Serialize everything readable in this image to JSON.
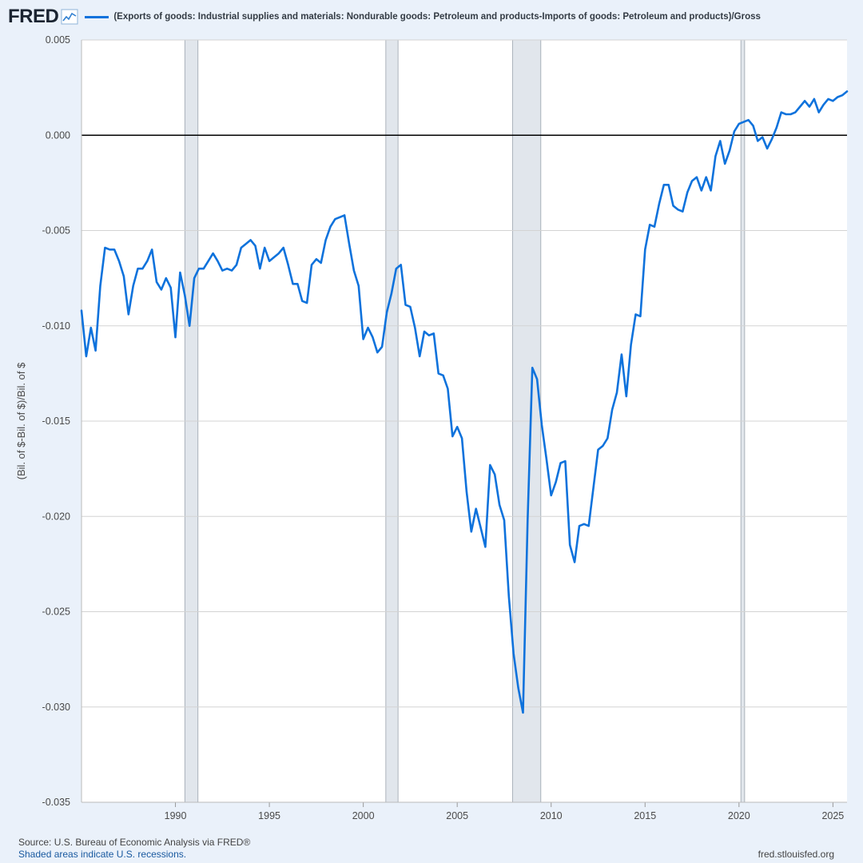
{
  "header": {
    "logo": "FRED",
    "logo_icon": "chart-line-icon",
    "legend_label": "(Exports of goods: Industrial supplies and materials: Nondurable goods: Petroleum and products-Imports of goods: Petroleum and products)/Gross"
  },
  "footer": {
    "source": "Source: U.S. Bureau of Economic Analysis via FRED®",
    "shaded": "Shaded areas indicate U.S. recessions.",
    "site": "fred.stlouisfed.org"
  },
  "colors": {
    "series": "#0e72dc",
    "recession": "#e1e6ec",
    "grid": "#d3d3d3",
    "background": "#eaf1fa",
    "plot": "#ffffff"
  },
  "chart_data": {
    "type": "line",
    "ylabel": "(Bil. of $-Bil. of $)/Bil. of $",
    "xlim": [
      1985.0,
      2025.75
    ],
    "ylim": [
      -0.035,
      0.005
    ],
    "yticks": [
      0.005,
      0.0,
      -0.005,
      -0.01,
      -0.015,
      -0.02,
      -0.025,
      -0.03,
      -0.035
    ],
    "ytick_labels": [
      "0.005",
      "0.000",
      "-0.005",
      "-0.010",
      "-0.015",
      "-0.020",
      "-0.025",
      "-0.030",
      "-0.035"
    ],
    "xticks": [
      1990,
      1995,
      2000,
      2005,
      2010,
      2015,
      2020,
      2025
    ],
    "xtick_labels": [
      "1990",
      "1995",
      "2000",
      "2005",
      "2010",
      "2015",
      "2020",
      "2025"
    ],
    "zero_line": 0.0,
    "grid": true,
    "recessions": [
      [
        1990.5,
        1991.2
      ],
      [
        2001.2,
        2001.85
      ],
      [
        2007.95,
        2009.45
      ],
      [
        2020.1,
        2020.3
      ]
    ],
    "series": [
      {
        "x": [
          1985.0,
          1985.25,
          1985.5,
          1985.75,
          1986.0,
          1986.25,
          1986.5,
          1986.75,
          1987.0,
          1987.25,
          1987.5,
          1987.75,
          1988.0,
          1988.25,
          1988.5,
          1988.75,
          1989.0,
          1989.25,
          1989.5,
          1989.75,
          1990.0,
          1990.25,
          1990.5,
          1990.75,
          1991.0,
          1991.25,
          1991.5,
          1991.75,
          1992.0,
          1992.25,
          1992.5,
          1992.75,
          1993.0,
          1993.25,
          1993.5,
          1993.75,
          1994.0,
          1994.25,
          1994.5,
          1994.75,
          1995.0,
          1995.25,
          1995.5,
          1995.75,
          1996.0,
          1996.25,
          1996.5,
          1996.75,
          1997.0,
          1997.25,
          1997.5,
          1997.75,
          1998.0,
          1998.25,
          1998.5,
          1998.75,
          1999.0,
          1999.25,
          1999.5,
          1999.75,
          2000.0,
          2000.25,
          2000.5,
          2000.75,
          2001.0,
          2001.25,
          2001.5,
          2001.75,
          2002.0,
          2002.25,
          2002.5,
          2002.75,
          2003.0,
          2003.25,
          2003.5,
          2003.75,
          2004.0,
          2004.25,
          2004.5,
          2004.75,
          2005.0,
          2005.25,
          2005.5,
          2005.75,
          2006.0,
          2006.25,
          2006.5,
          2006.75,
          2007.0,
          2007.25,
          2007.5,
          2007.75,
          2008.0,
          2008.25,
          2008.5,
          2008.75,
          2009.0,
          2009.25,
          2009.5,
          2009.75,
          2010.0,
          2010.25,
          2010.5,
          2010.75,
          2011.0,
          2011.25,
          2011.5,
          2011.75,
          2012.0,
          2012.25,
          2012.5,
          2012.75,
          2013.0,
          2013.25,
          2013.5,
          2013.75,
          2014.0,
          2014.25,
          2014.5,
          2014.75,
          2015.0,
          2015.25,
          2015.5,
          2015.75,
          2016.0,
          2016.25,
          2016.5,
          2016.75,
          2017.0,
          2017.25,
          2017.5,
          2017.75,
          2018.0,
          2018.25,
          2018.5,
          2018.75,
          2019.0,
          2019.25,
          2019.5,
          2019.75,
          2020.0,
          2020.25,
          2020.5,
          2020.75,
          2021.0,
          2021.25,
          2021.5,
          2021.75,
          2022.0,
          2022.25,
          2022.5,
          2022.75,
          2023.0,
          2023.25,
          2023.5,
          2023.75,
          2024.0,
          2024.25,
          2024.5,
          2024.75,
          2025.0,
          2025.25,
          2025.5,
          2025.75
        ],
        "y": [
          -0.0092,
          -0.0116,
          -0.0101,
          -0.0113,
          -0.0079,
          -0.0059,
          -0.006,
          -0.006,
          -0.0066,
          -0.0074,
          -0.0094,
          -0.0079,
          -0.007,
          -0.007,
          -0.0066,
          -0.006,
          -0.0077,
          -0.0081,
          -0.0075,
          -0.008,
          -0.0106,
          -0.0072,
          -0.0084,
          -0.01,
          -0.0075,
          -0.007,
          -0.007,
          -0.0066,
          -0.0062,
          -0.0066,
          -0.0071,
          -0.007,
          -0.0071,
          -0.0068,
          -0.0059,
          -0.0057,
          -0.0055,
          -0.0058,
          -0.007,
          -0.0059,
          -0.0066,
          -0.0064,
          -0.0062,
          -0.0059,
          -0.0068,
          -0.0078,
          -0.0078,
          -0.0087,
          -0.0088,
          -0.0068,
          -0.0065,
          -0.0067,
          -0.0055,
          -0.0048,
          -0.0044,
          -0.0043,
          -0.0042,
          -0.0057,
          -0.0071,
          -0.0079,
          -0.0107,
          -0.0101,
          -0.0106,
          -0.0114,
          -0.0111,
          -0.0093,
          -0.0083,
          -0.007,
          -0.0068,
          -0.0089,
          -0.009,
          -0.0101,
          -0.0116,
          -0.0103,
          -0.0105,
          -0.0104,
          -0.0125,
          -0.0126,
          -0.0133,
          -0.0158,
          -0.0153,
          -0.0159,
          -0.0187,
          -0.0208,
          -0.0196,
          -0.0206,
          -0.0216,
          -0.0173,
          -0.0178,
          -0.0194,
          -0.0202,
          -0.0242,
          -0.0272,
          -0.029,
          -0.0303,
          -0.0202,
          -0.0122,
          -0.0128,
          -0.0152,
          -0.017,
          -0.0189,
          -0.0182,
          -0.0172,
          -0.0171,
          -0.0215,
          -0.0224,
          -0.0205,
          -0.0204,
          -0.0205,
          -0.0185,
          -0.0165,
          -0.0163,
          -0.0159,
          -0.0144,
          -0.0135,
          -0.0115,
          -0.0137,
          -0.011,
          -0.0094,
          -0.0095,
          -0.006,
          -0.0047,
          -0.0048,
          -0.0036,
          -0.0026,
          -0.0026,
          -0.0037,
          -0.0039,
          -0.004,
          -0.003,
          -0.0024,
          -0.0022,
          -0.0029,
          -0.0022,
          -0.0029,
          -0.0011,
          -0.0003,
          -0.0015,
          -0.0008,
          0.0002,
          0.0006,
          0.0007,
          0.0008,
          0.0005,
          -0.0003,
          -0.0001,
          -0.0007,
          -0.0002,
          0.0004,
          0.0012,
          0.0011,
          0.0011,
          0.0012,
          0.0015,
          0.0018,
          0.0015,
          0.0019,
          0.0012,
          0.0016,
          0.0019,
          0.0018,
          0.002,
          0.0021,
          0.0023
        ]
      }
    ]
  }
}
